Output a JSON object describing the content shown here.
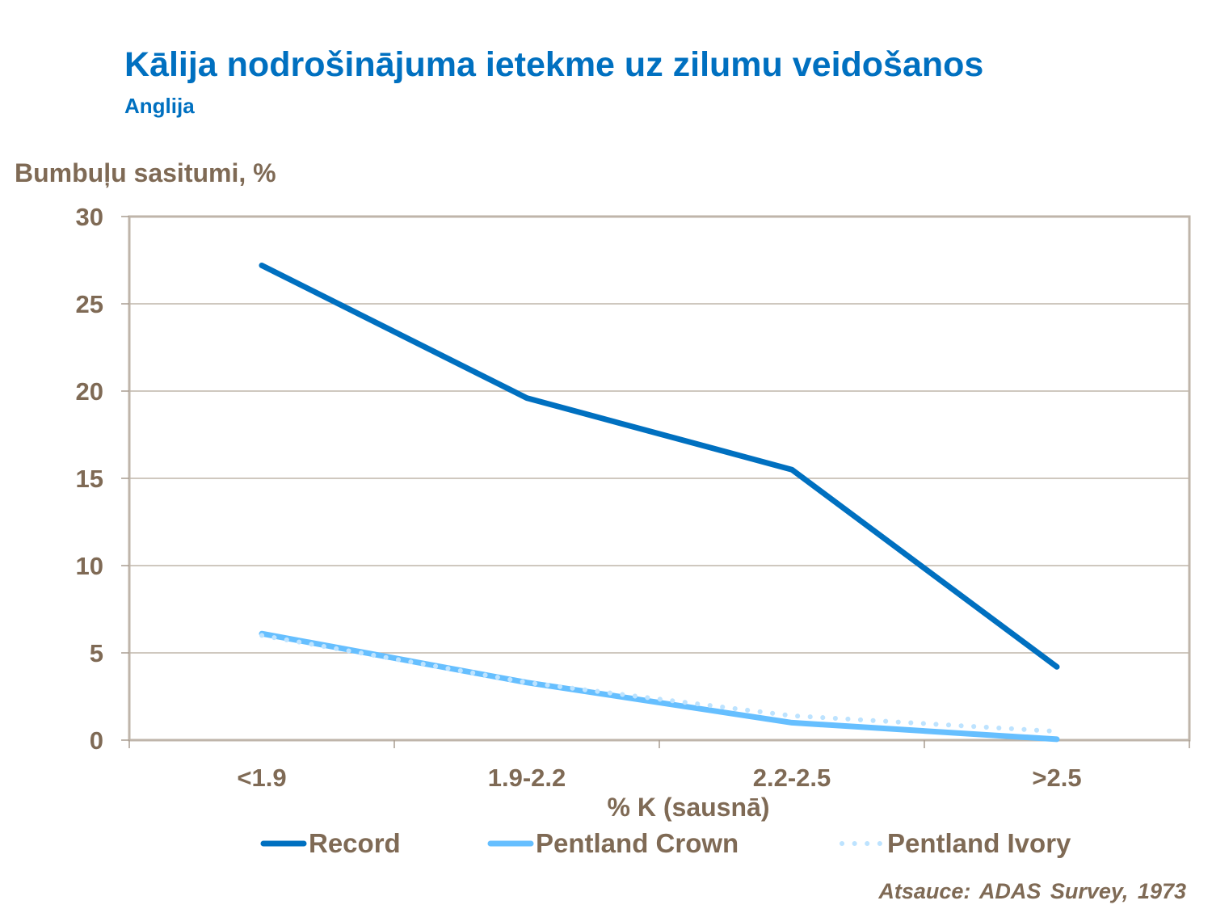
{
  "header": {
    "title": "Kālija nodrošinājuma ietekme uz zilumu veidošanos",
    "subtitle": "Anglija"
  },
  "axes": {
    "y_label": "Bumbuļu sasitumi, %",
    "x_label": "% K (sausnā)",
    "y_ticks": [
      "0",
      "5",
      "10",
      "15",
      "20",
      "25",
      "30"
    ],
    "x_ticks": [
      "<1.9",
      "1.9-2.2",
      "2.2-2.5",
      ">2.5"
    ]
  },
  "legend": {
    "items": [
      {
        "label": "Record",
        "color": "#0070C0",
        "style": "solid"
      },
      {
        "label": "Pentland Crown",
        "color": "#66BFFF",
        "style": "solid"
      },
      {
        "label": "Pentland Ivory",
        "color": "#BDE3FF",
        "style": "dotted"
      }
    ]
  },
  "footer": {
    "source": "Atsauce: ADAS Survey, 1973"
  },
  "colors": {
    "title": "#0070C0",
    "axis_text": "#7F6A55",
    "frame": "#BFB5AA",
    "gridline": "#BFB5AA"
  },
  "chart_data": {
    "type": "line",
    "title": "Kālija nodrošinājuma ietekme uz zilumu veidošanos",
    "subtitle": "Anglija",
    "xlabel": "% K (sausnā)",
    "ylabel": "Bumbuļu sasitumi, %",
    "categories": [
      "<1.9",
      "1.9-2.2",
      "2.2-2.5",
      ">2.5"
    ],
    "ylim": [
      0,
      30
    ],
    "yticks": [
      0,
      5,
      10,
      15,
      20,
      25,
      30
    ],
    "grid": true,
    "legend_position": "bottom",
    "series": [
      {
        "name": "Record",
        "values": [
          27.2,
          19.6,
          15.5,
          4.2
        ]
      },
      {
        "name": "Pentland Crown",
        "values": [
          6.1,
          3.3,
          1.0,
          0.05
        ]
      },
      {
        "name": "Pentland Ivory",
        "values": [
          6.0,
          3.3,
          1.4,
          0.5
        ]
      }
    ],
    "annotation": "Atsauce: ADAS Survey, 1973"
  }
}
